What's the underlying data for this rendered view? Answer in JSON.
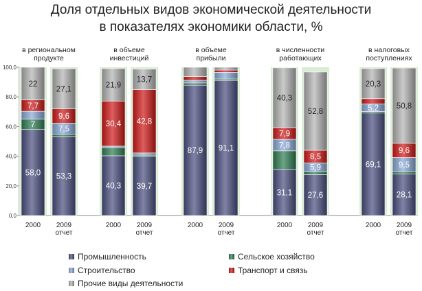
{
  "chart_data": {
    "type": "bar",
    "stacked": true,
    "title": [
      "Доля отдельных видов экономической деятельности",
      "в показателях экономики области, %"
    ],
    "groups": [
      {
        "label": [
          "в региональном",
          "продукте"
        ],
        "categories": [
          [
            "2000"
          ],
          [
            "2009",
            "отчет"
          ]
        ]
      },
      {
        "label": [
          "в объеме",
          "инвестиций"
        ],
        "categories": [
          [
            "2000"
          ],
          [
            "2009",
            "отчет"
          ]
        ]
      },
      {
        "label": [
          "в объеме",
          "прибыли"
        ],
        "categories": [
          [
            "2000"
          ],
          [
            "2009",
            "отчет"
          ]
        ]
      },
      {
        "label": [
          "в численности",
          "работающих"
        ],
        "categories": [
          [
            "2000"
          ],
          [
            "2009",
            "отчет"
          ]
        ]
      },
      {
        "label": [
          "в налоговых",
          "поступлениях"
        ],
        "categories": [
          [
            "2000"
          ],
          [
            "2009",
            "отчет"
          ]
        ]
      }
    ],
    "series": [
      {
        "name": "Промышленность",
        "color": "#4a4e7e",
        "values": [
          58.0,
          53.3,
          40.3,
          39.7,
          87.9,
          91.1,
          31.1,
          27.6,
          69.1,
          28.1
        ],
        "labels": [
          "58,0",
          "53,3",
          "40,3",
          "39,7",
          "87,9",
          "91,1",
          "31,1",
          "27,6",
          "69,1",
          "28,1"
        ]
      },
      {
        "name": "Сельское хозяйство",
        "color": "#2e7d52",
        "values": [
          7,
          1.5,
          5.5,
          1,
          1.5,
          1,
          12.5,
          2,
          1,
          1.5
        ],
        "labels": [
          "7",
          "",
          "",
          "",
          "",
          "",
          "",
          "",
          "",
          ""
        ]
      },
      {
        "name": "Строительство",
        "color": "#8aa9d8",
        "values": [
          5.3,
          7.5,
          1,
          1.5,
          1.8,
          4.5,
          7.8,
          5.9,
          5.2,
          9.5
        ],
        "labels": [
          "",
          "7,5",
          "",
          "",
          "",
          "",
          "7,8",
          "5,9",
          "5,2",
          "9,5"
        ]
      },
      {
        "name": "Транспорт и связь",
        "color": "#d01818",
        "values": [
          7.7,
          9.6,
          30.4,
          42.8,
          2.5,
          1.5,
          7.9,
          8.5,
          3.5,
          9.6
        ],
        "labels": [
          "7,7",
          "9,6",
          "30,4",
          "42,8",
          "",
          "",
          "7,9",
          "8,5",
          "",
          "9,6"
        ]
      },
      {
        "name": "Прочие виды деятельности",
        "color": "#b3b3b3",
        "values": [
          22,
          27.1,
          21.9,
          13.7,
          6.3,
          1.9,
          40.3,
          52.8,
          20.3,
          50.8
        ],
        "labels": [
          "22",
          "27,1",
          "21,9",
          "13,7",
          "",
          "",
          "40,3",
          "52,8",
          "20,3",
          "50,8"
        ]
      }
    ],
    "y_ticks": [
      "0,0",
      "20,0",
      "40,0",
      "60,0",
      "80,0",
      "100,0"
    ],
    "ylim": [
      0,
      100
    ],
    "legend_position": "bottom"
  }
}
